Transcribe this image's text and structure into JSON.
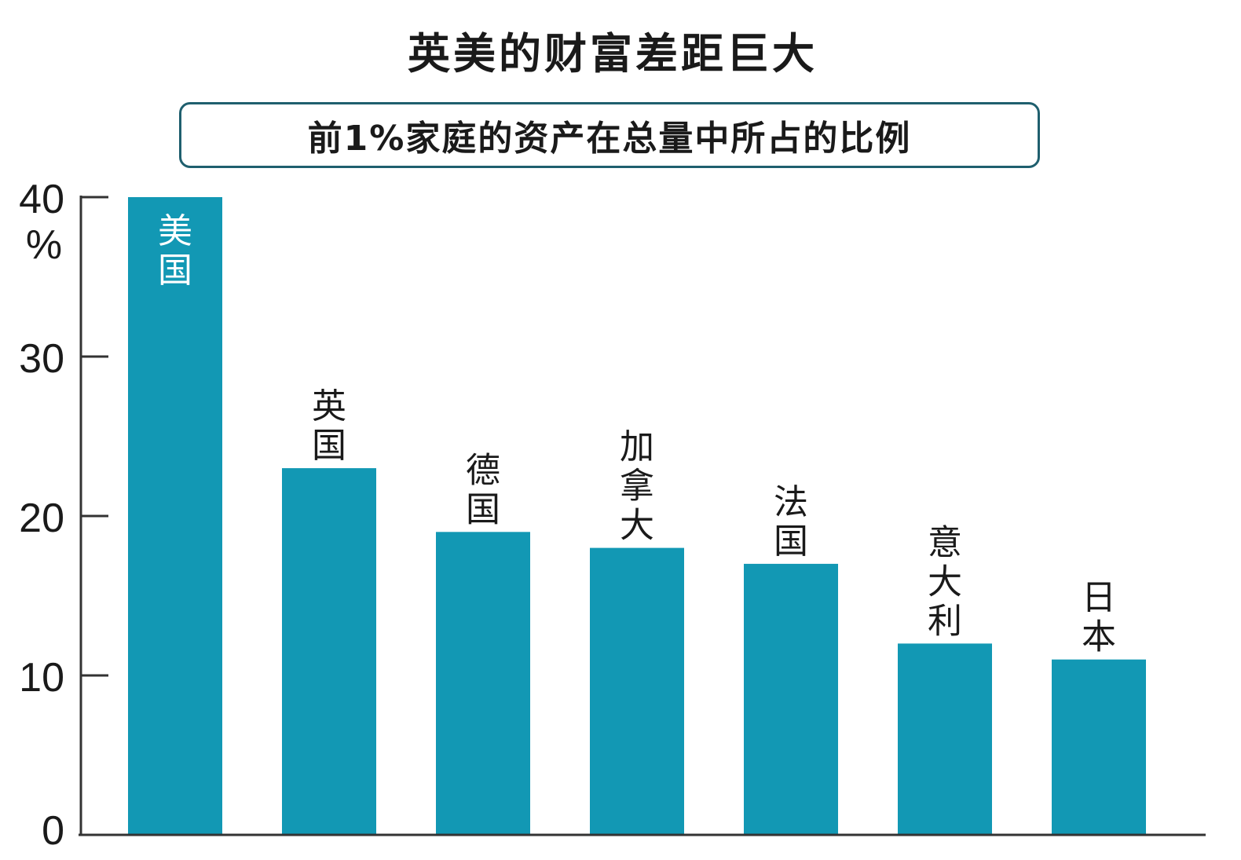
{
  "chart_data": {
    "type": "bar",
    "title": "英美的财富差距巨大",
    "subtitle": "前1%家庭的资产在总量中所占的比例",
    "y_unit": "%",
    "categories": [
      "美国",
      "英国",
      "德国",
      "加拿大",
      "法国",
      "意大利",
      "日本"
    ],
    "values": [
      40,
      23,
      19,
      18,
      17,
      12,
      11
    ],
    "y_ticks": [
      0,
      10,
      20,
      30,
      40
    ],
    "ylim": [
      0,
      40
    ],
    "grid": false,
    "legend": "none",
    "bar_color": "#1298b4",
    "inside_label_categories": [
      "美国"
    ]
  }
}
